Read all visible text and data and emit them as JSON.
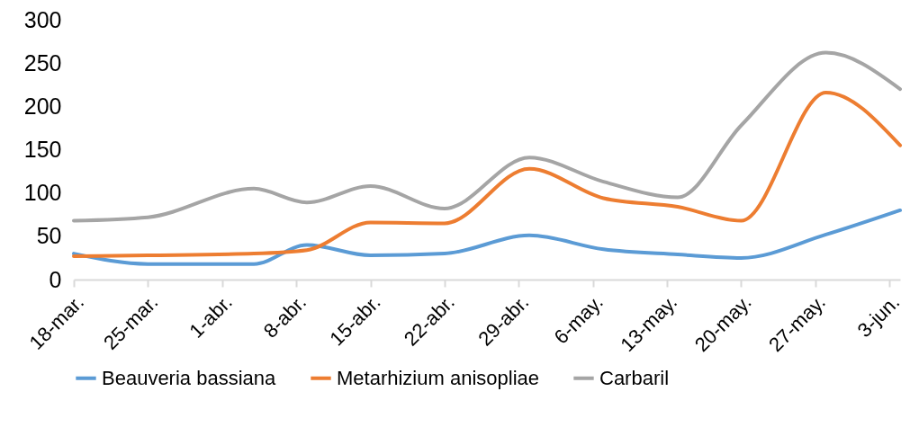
{
  "chart_data": {
    "type": "line",
    "x": [
      "--03-18",
      "--03-25",
      "--04-04",
      "--04-09",
      "--04-15",
      "--04-22",
      "--04-30",
      "--05-07",
      "--05-14",
      "--05-20",
      "--05-28",
      "--06-04"
    ],
    "series": [
      {
        "name": "Beauveria bassiana",
        "color": "#5b9bd5",
        "values": [
          30,
          18,
          18,
          40,
          28,
          30,
          51,
          35,
          29,
          25,
          52,
          80
        ]
      },
      {
        "name": "Metarhizium anisopliae",
        "color": "#ed7d31",
        "values": [
          27,
          28,
          30,
          34,
          66,
          65,
          128,
          94,
          84,
          68,
          216,
          155
        ]
      },
      {
        "name": "Carbaril",
        "color": "#a5a5a5",
        "values": [
          68,
          72,
          105,
          89,
          108,
          82,
          141,
          113,
          95,
          178,
          262,
          220
        ]
      }
    ],
    "xlim": [
      "--03-18",
      "--06-04"
    ],
    "xticks": [
      {
        "value": "--03-18",
        "label": "18-mar."
      },
      {
        "value": "--03-25",
        "label": "25-mar."
      },
      {
        "value": "--04-01",
        "label": "1-abr."
      },
      {
        "value": "--04-08",
        "label": "8-abr."
      },
      {
        "value": "--04-15",
        "label": "15-abr."
      },
      {
        "value": "--04-22",
        "label": "22-abr."
      },
      {
        "value": "--04-29",
        "label": "29-abr."
      },
      {
        "value": "--05-06",
        "label": "6-may."
      },
      {
        "value": "--05-13",
        "label": "13-may."
      },
      {
        "value": "--05-20",
        "label": "20-may."
      },
      {
        "value": "--05-27",
        "label": "27-may."
      },
      {
        "value": "--06-03",
        "label": "3-jun."
      }
    ],
    "ylim": [
      0,
      300
    ],
    "yticks": [
      0,
      50,
      100,
      150,
      200,
      250,
      300
    ],
    "grid": false,
    "legend": "bottom",
    "marker": "none",
    "line_style": "solid"
  }
}
